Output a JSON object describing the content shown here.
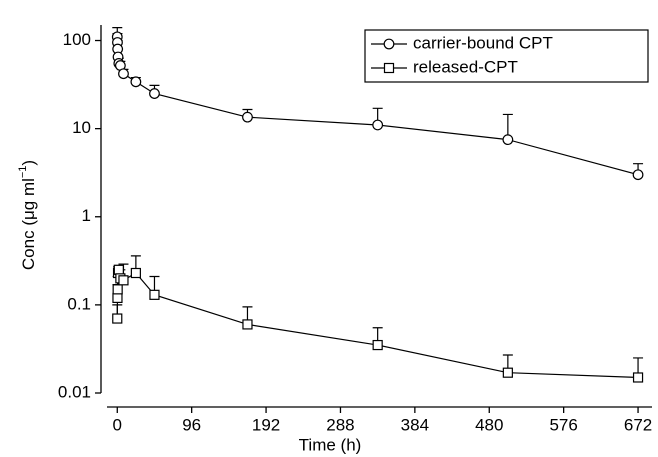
{
  "chart_data": {
    "type": "line",
    "x_label": "Time (h)",
    "y_label": "Conc (μg ml",
    "y_label_sup": "−1",
    "y_label_end": ")",
    "x": [
      0,
      0.25,
      0.5,
      1,
      2,
      4,
      8,
      24,
      48,
      168,
      336,
      504,
      672
    ],
    "series": [
      {
        "name": "carrier-bound CPT",
        "color": "#000000",
        "marker": "circle",
        "values": [
          110,
          95,
          80,
          65,
          55,
          52,
          42,
          34,
          25,
          13.5,
          11,
          7.5,
          3
        ],
        "errors": [
          30,
          25,
          20,
          15,
          8,
          6,
          5,
          4,
          6,
          3,
          6,
          7,
          1
        ]
      },
      {
        "name": "released-CPT",
        "color": "#000000",
        "marker": "square",
        "values": [
          0.07,
          0.12,
          0.15,
          0.23,
          0.25,
          0.2,
          0.19,
          0.23,
          0.13,
          0.06,
          0.035,
          0.017,
          0.015
        ],
        "errors": [
          0.03,
          0.05,
          0.06,
          0.04,
          0.03,
          0.05,
          0.1,
          0.13,
          0.08,
          0.035,
          0.02,
          0.01,
          0.01
        ]
      }
    ],
    "xlim": [
      -21,
      690
    ],
    "xticks": [
      0,
      96,
      192,
      288,
      384,
      480,
      576,
      672
    ],
    "ylim": [
      0.01,
      150
    ],
    "yticks": [
      0.01,
      0.1,
      1,
      10,
      100
    ],
    "ylog": true,
    "legend": "upper right"
  }
}
